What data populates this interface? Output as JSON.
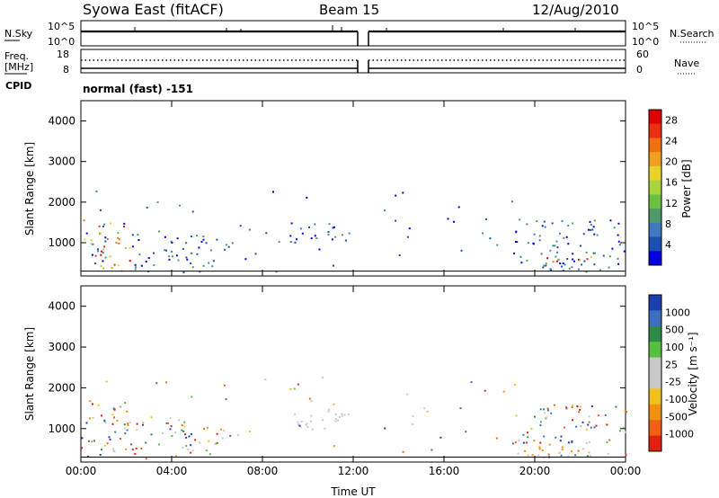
{
  "header": {
    "station": "Syowa East (fitACF)",
    "beam": "Beam 15",
    "date": "12/Aug/2010"
  },
  "summary": {
    "nsky_label": "N.Sky",
    "nsearch_label": "N.Search",
    "nsky_ticks": [
      "10^5",
      "10^0"
    ],
    "freq_label": "Freq.",
    "freq_unit": "[MHz]",
    "freq_ticks": [
      "18",
      "8"
    ],
    "nave_label": "Nave",
    "nave_ticks": [
      "60",
      "0"
    ],
    "cpid_label": "CPID",
    "cpid_text": "normal (fast) -151"
  },
  "chart_data": [
    {
      "type": "heatmap",
      "name": "power",
      "ylabel": "Slant Range [km]",
      "xlabel": "",
      "x_ticks": [
        "00:00",
        "04:00",
        "08:00",
        "12:00",
        "16:00",
        "20:00",
        "00:00"
      ],
      "xlim_hours": [
        0,
        24
      ],
      "ylim": [
        180,
        4500
      ],
      "y_ticks": [
        1000,
        2000,
        3000,
        4000
      ],
      "colorbar": {
        "label": "Power [dB]",
        "ticks": [
          "4",
          "8",
          "12",
          "16",
          "20",
          "24",
          "28"
        ],
        "range": [
          0,
          30
        ],
        "colors": [
          "#0000e0",
          "#1c4fb5",
          "#3f7ac0",
          "#4f9a6a",
          "#6cc040",
          "#a8d43c",
          "#e8d22a",
          "#f0a020",
          "#f07010",
          "#e83010",
          "#e00000"
        ]
      }
    },
    {
      "type": "heatmap",
      "name": "velocity",
      "ylabel": "Slant Range [km]",
      "xlabel": "Time UT",
      "x_ticks": [
        "00:00",
        "04:00",
        "08:00",
        "12:00",
        "16:00",
        "20:00",
        "00:00"
      ],
      "xlim_hours": [
        0,
        24
      ],
      "ylim": [
        180,
        4500
      ],
      "y_ticks": [
        1000,
        2000,
        3000,
        4000
      ],
      "colorbar": {
        "label": "Velocity [m s⁻¹]",
        "ticks": [
          "1000",
          "500",
          "100",
          "25",
          "-25",
          "-100",
          "-500",
          "-1000"
        ],
        "colors": [
          "#1c3fb0",
          "#3e6ec0",
          "#2f8a4a",
          "#55c040",
          "#c8c8c8",
          "#c8c8c8",
          "#f0c020",
          "#f09010",
          "#f06010",
          "#e02010"
        ]
      }
    }
  ]
}
